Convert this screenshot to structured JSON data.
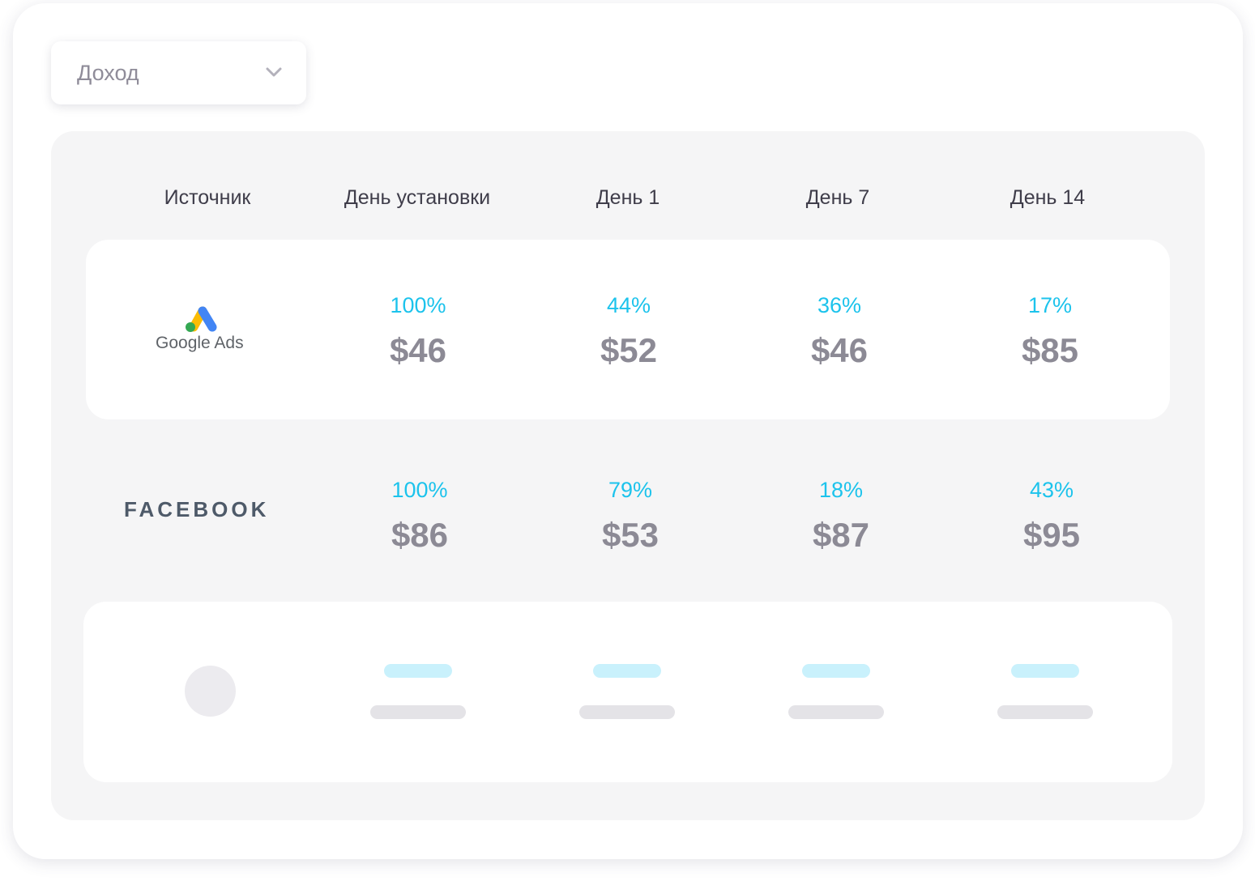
{
  "metric_select": {
    "value": "Доход",
    "icon": "chevron-down-icon"
  },
  "table": {
    "headers": [
      "Источник",
      "День установки",
      "День 1",
      "День 7",
      "День 14"
    ],
    "rows": [
      {
        "source_logo": "google-ads-logo",
        "source_label": "Google Ads",
        "cells": [
          {
            "percent": "100%",
            "value": "$46"
          },
          {
            "percent": "44%",
            "value": "$52"
          },
          {
            "percent": "36%",
            "value": "$46"
          },
          {
            "percent": "17%",
            "value": "$85"
          }
        ]
      },
      {
        "source_logo": "facebook-logo",
        "source_label": "FACEBOOK",
        "cells": [
          {
            "percent": "100%",
            "value": "$86"
          },
          {
            "percent": "79%",
            "value": "$53"
          },
          {
            "percent": "18%",
            "value": "$87"
          },
          {
            "percent": "43%",
            "value": "$95"
          }
        ]
      }
    ]
  },
  "colors": {
    "percent": "#1cc3ec",
    "value": "#8c8a95",
    "header": "#3f3d4a",
    "panel": "#f5f5f6",
    "google_blue": "#4285f4",
    "google_yellow": "#fbbc04",
    "google_green": "#34a853"
  }
}
